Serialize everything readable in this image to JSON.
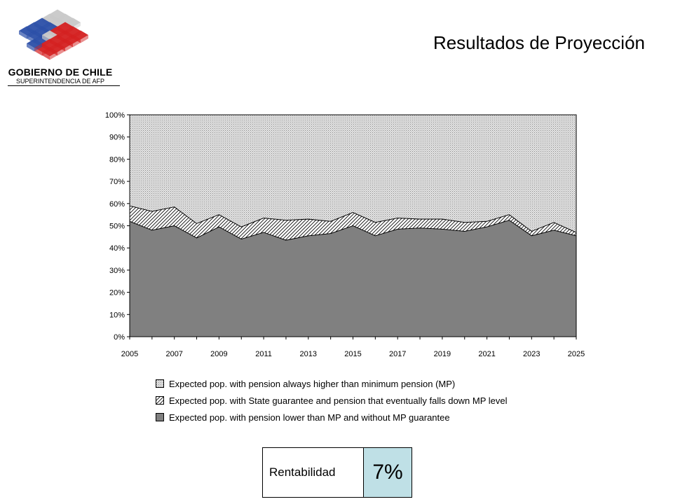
{
  "header": {
    "title": "Resultados de Proyección",
    "logo": {
      "title": "GOBIERNO DE CHILE",
      "subtitle": "SUPERINTENDENCIA DE AFP",
      "icon": "chile-government-cube-logo",
      "colors": {
        "blue": "#2b4fa8",
        "red": "#d42020",
        "grey": "#c8c8c8"
      }
    }
  },
  "chart_data": {
    "type": "area",
    "stacked": true,
    "x": [
      2005,
      2006,
      2007,
      2008,
      2009,
      2010,
      2011,
      2012,
      2013,
      2014,
      2015,
      2016,
      2017,
      2018,
      2019,
      2020,
      2021,
      2022,
      2023,
      2024,
      2025
    ],
    "xtick_labels": [
      "2005",
      "2007",
      "2009",
      "2011",
      "2013",
      "2015",
      "2017",
      "2019",
      "2021",
      "2023",
      "2025"
    ],
    "ytick_labels": [
      "0%",
      "10%",
      "20%",
      "30%",
      "40%",
      "50%",
      "60%",
      "70%",
      "80%",
      "90%",
      "100%"
    ],
    "ylim": [
      0,
      100
    ],
    "grid": false,
    "legend_position": "bottom",
    "series": [
      {
        "name": "Expected pop. with pension lower than MP and without MP guarantee",
        "pattern": "solid",
        "color": "#808080",
        "values": [
          52,
          48,
          50,
          44.5,
          49.5,
          44,
          47,
          43.5,
          45.5,
          46.5,
          50,
          45.5,
          48.5,
          49,
          48.5,
          47.5,
          49.5,
          52.5,
          45.5,
          48,
          45.5
        ]
      },
      {
        "name": "Expected pop. with State guarantee and pension that eventually falls down MP level",
        "pattern": "diagonal-hatch",
        "color": "#ffffff",
        "values": [
          7,
          8.5,
          8.5,
          6.5,
          5.5,
          5.5,
          6.5,
          9,
          7.5,
          5.5,
          6,
          6,
          5,
          4,
          4.5,
          4,
          2.5,
          2.5,
          2,
          3.5,
          1.5
        ]
      },
      {
        "name": "Expected pop. with pension always higher than minimum pension (MP)",
        "pattern": "dotted",
        "color": "#e0e0e0",
        "values": [
          41,
          43.5,
          41.5,
          49,
          45,
          50.5,
          46.5,
          47.5,
          47,
          48,
          44,
          48.5,
          46.5,
          47,
          47,
          48.5,
          48,
          45,
          52.5,
          48.5,
          53
        ]
      }
    ]
  },
  "legend_order": [
    2,
    1,
    0
  ],
  "rentabilidad": {
    "label": "Rentabilidad",
    "value": "7%",
    "highlight_color": "#bfe0e6"
  }
}
